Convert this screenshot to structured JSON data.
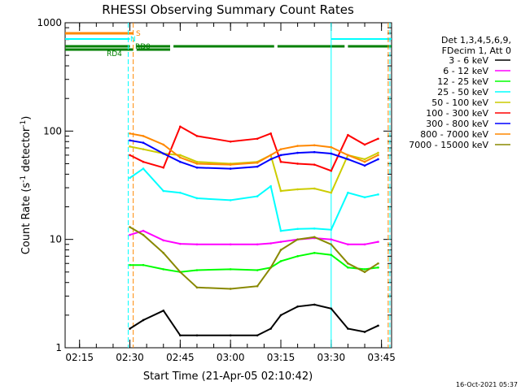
{
  "chart_data": {
    "type": "line",
    "title": "RHESSI Observing Summary Count Rates",
    "xlabel": "Start Time (21-Apr-05 02:10:42)",
    "ylabel": "Count Rate (s⁻¹ detector⁻¹)",
    "ylabel_main": "Count Rate (s",
    "ylabel_sup1": "-1",
    "ylabel_mid": " detector",
    "ylabel_sup2": "-1",
    "ylabel_end": ")",
    "y_scale": "log",
    "ylim": [
      1,
      1000
    ],
    "xlim": [
      "02:10:42",
      "03:48:00"
    ],
    "x_ticks": [
      "02:15",
      "02:30",
      "02:45",
      "03:00",
      "03:15",
      "03:30",
      "03:45"
    ],
    "y_ticks": [
      "1",
      "10",
      "100",
      "1000"
    ],
    "footer": "16-Oct-2021 05:37",
    "legend_placement": "right",
    "legend_header": [
      "Det 1,3,4,5,6,9,",
      "FDecim 1, Att 0"
    ],
    "series": [
      {
        "name": "3 - 6 keV",
        "color": "#000000",
        "x": [
          "02:30",
          "02:34",
          "02:40",
          "02:45",
          "02:50",
          "03:00",
          "03:08",
          "03:12",
          "03:15",
          "03:20",
          "03:25",
          "03:30",
          "03:35",
          "03:40",
          "03:44"
        ],
        "values": [
          1.5,
          1.8,
          2.2,
          1.3,
          1.3,
          1.3,
          1.3,
          1.5,
          2,
          2.4,
          2.5,
          2.3,
          1.5,
          1.4,
          1.6
        ]
      },
      {
        "name": "6 - 12 keV",
        "color": "#ff00ff",
        "x": [
          "02:30",
          "02:34",
          "02:40",
          "02:45",
          "02:50",
          "03:00",
          "03:08",
          "03:12",
          "03:15",
          "03:20",
          "03:25",
          "03:30",
          "03:35",
          "03:40",
          "03:44"
        ],
        "values": [
          11,
          12,
          9.8,
          9.1,
          9,
          9,
          9,
          9.2,
          9.5,
          10,
          10.3,
          10,
          9,
          9,
          9.5
        ]
      },
      {
        "name": "12 - 25 keV",
        "color": "#00ff00",
        "x": [
          "02:30",
          "02:34",
          "02:40",
          "02:45",
          "02:50",
          "03:00",
          "03:08",
          "03:12",
          "03:15",
          "03:20",
          "03:25",
          "03:30",
          "03:35",
          "03:40",
          "03:44"
        ],
        "values": [
          5.8,
          5.8,
          5.3,
          5,
          5.2,
          5.3,
          5.2,
          5.5,
          6.3,
          7,
          7.5,
          7.2,
          5.5,
          5.3,
          5.5
        ]
      },
      {
        "name": "25 - 50 keV",
        "color": "#00ffff",
        "x": [
          "02:30",
          "02:34",
          "02:40",
          "02:45",
          "02:50",
          "03:00",
          "03:08",
          "03:12",
          "03:15",
          "03:20",
          "03:25",
          "03:30",
          "03:35",
          "03:40",
          "03:44"
        ],
        "values": [
          37,
          45,
          28,
          27,
          24,
          23,
          25,
          31,
          12,
          12.5,
          12.6,
          12.3,
          27,
          24.5,
          26
        ]
      },
      {
        "name": "50 - 100 keV",
        "color": "#cccc00",
        "x": [
          "02:30",
          "02:34",
          "02:40",
          "02:45",
          "02:50",
          "03:00",
          "03:08",
          "03:12",
          "03:15",
          "03:20",
          "03:25",
          "03:30",
          "03:35",
          "03:40",
          "03:44"
        ],
        "values": [
          72,
          68,
          62,
          60,
          52,
          50,
          52,
          60,
          28,
          29,
          29.5,
          27,
          60,
          55,
          63
        ]
      },
      {
        "name": "100 - 300 keV",
        "color": "#ff0000",
        "x": [
          "02:30",
          "02:34",
          "02:40",
          "02:45",
          "02:50",
          "03:00",
          "03:08",
          "03:12",
          "03:15",
          "03:20",
          "03:25",
          "03:30",
          "03:35",
          "03:40",
          "03:44"
        ],
        "values": [
          60,
          52,
          46,
          110,
          90,
          80,
          85,
          95,
          52,
          50,
          49,
          43,
          92,
          75,
          85
        ]
      },
      {
        "name": "300 - 800 keV",
        "color": "#0000ff",
        "x": [
          "02:30",
          "02:34",
          "02:40",
          "02:45",
          "02:50",
          "03:00",
          "03:08",
          "03:12",
          "03:15",
          "03:20",
          "03:25",
          "03:30",
          "03:35",
          "03:40",
          "03:44"
        ],
        "values": [
          82,
          78,
          62,
          52,
          46,
          45,
          47,
          55,
          60,
          63,
          64,
          62,
          55,
          48,
          55
        ]
      },
      {
        "name": "800 - 7000 keV",
        "color": "#ff8800",
        "x": [
          "02:30",
          "02:34",
          "02:40",
          "02:45",
          "02:50",
          "03:00",
          "03:08",
          "03:12",
          "03:15",
          "03:20",
          "03:25",
          "03:30",
          "03:35",
          "03:40",
          "03:44"
        ],
        "values": [
          95,
          90,
          75,
          57,
          50,
          49,
          51,
          60,
          68,
          73,
          74,
          71,
          60,
          52,
          60
        ]
      },
      {
        "name": "7000 - 15000 keV",
        "color": "#888800",
        "x": [
          "02:30",
          "02:34",
          "02:40",
          "02:45",
          "02:50",
          "03:00",
          "03:08",
          "03:12",
          "03:15",
          "03:20",
          "03:25",
          "03:30",
          "03:35",
          "03:40",
          "03:44"
        ],
        "values": [
          13,
          11,
          7.5,
          5,
          3.6,
          3.5,
          3.7,
          5.5,
          8,
          10,
          10.5,
          9,
          6,
          5,
          6
        ]
      }
    ],
    "status_bars": [
      {
        "label": "S",
        "color": "#ff8800",
        "segments": [
          [
            "02:10:42",
            "02:31:00"
          ]
        ]
      },
      {
        "label": "N",
        "color": "#00ffff",
        "segments": [
          [
            "02:10:42",
            "02:30:00"
          ],
          [
            "03:30:00",
            "03:48:00"
          ]
        ]
      },
      {
        "label": "RD0",
        "color": "#008000",
        "segments": [
          [
            "02:10:42",
            "02:30:00"
          ],
          [
            "02:32:00",
            "02:42:00"
          ],
          [
            "02:43:00",
            "03:13:00"
          ],
          [
            "03:14:00",
            "03:34:00"
          ],
          [
            "03:35:00",
            "03:48:00"
          ]
        ]
      },
      {
        "label": "RD4",
        "color": "#008000",
        "segments": [
          [
            "02:10:42",
            "02:31:00"
          ],
          [
            "02:32:00",
            "02:42:00"
          ]
        ]
      }
    ]
  }
}
